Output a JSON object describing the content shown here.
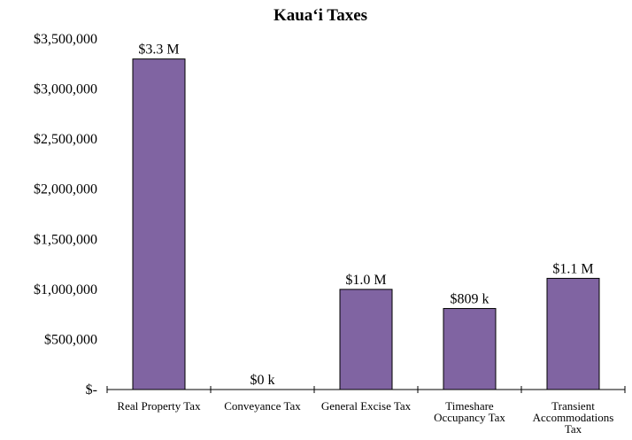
{
  "chart_data": {
    "type": "bar",
    "title": "Kaua‘i Taxes",
    "xlabel": "",
    "ylabel": "",
    "categories": [
      "Real Property Tax",
      "Conveyance Tax",
      "General Excise Tax",
      "Timeshare Occupancy Tax",
      "Transient Accommodations Tax"
    ],
    "category_label_lines": [
      [
        "Real Property Tax"
      ],
      [
        "Conveyance Tax"
      ],
      [
        "General Excise Tax"
      ],
      [
        "Timeshare",
        "Occupancy Tax"
      ],
      [
        "Transient",
        "Accommodations",
        "Tax"
      ]
    ],
    "values": [
      3300000,
      0,
      1000000,
      809000,
      1110000
    ],
    "data_labels": [
      "$3.3 M",
      "$0 k",
      "$1.0 M",
      "$809 k",
      "$1.1 M"
    ],
    "ylim": [
      0,
      3500000
    ],
    "yticks": [
      0,
      500000,
      1000000,
      1500000,
      2000000,
      2500000,
      3000000,
      3500000
    ],
    "ytick_labels": [
      "$-",
      "$500,000",
      "$1,000,000",
      "$1,500,000",
      "$2,000,000",
      "$2,500,000",
      "$3,000,000",
      "$3,500,000"
    ],
    "grid": false,
    "legend": "none",
    "bar_color": "#8064a2",
    "bar_edge_color": "#000000"
  }
}
